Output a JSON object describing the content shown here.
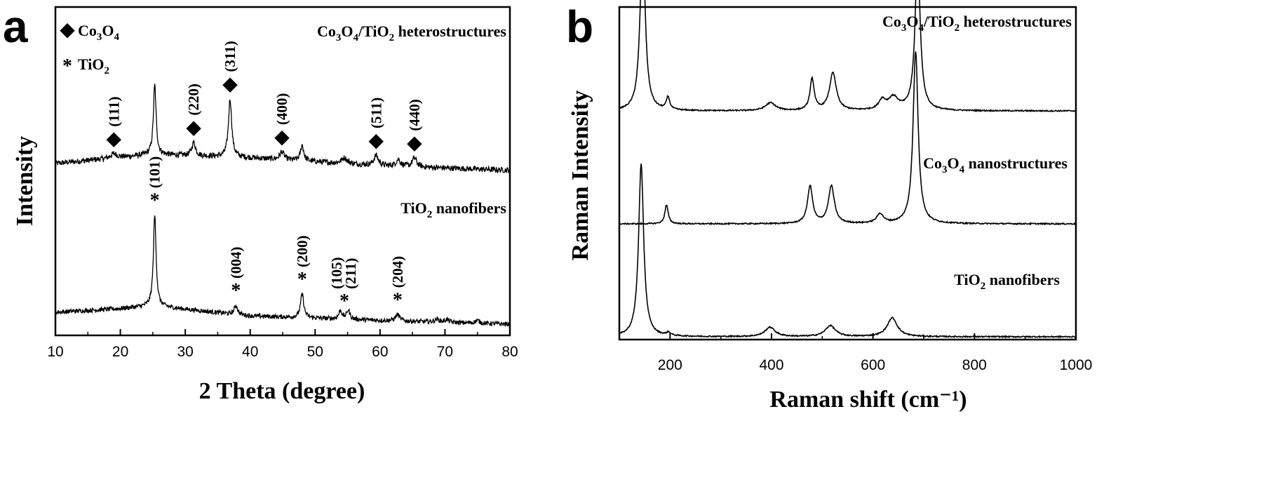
{
  "chart_data": [
    {
      "panel": "a",
      "type": "line",
      "xlabel": "2 Theta (degree)",
      "ylabel": "Intensity",
      "xlim": [
        10,
        80
      ],
      "xticks": [
        "10",
        "20",
        "30",
        "40",
        "50",
        "60",
        "70",
        "80"
      ],
      "legend": [
        {
          "symbol": "◆",
          "label": "Co",
          "sub1": "3",
          "mid": "O",
          "sub2": "4"
        },
        {
          "symbol": "*",
          "label": "TiO",
          "sub1": "2"
        }
      ],
      "series": [
        {
          "name": "Co3O4/TiO2 heterostructures",
          "label_parts": [
            "Co",
            "3",
            "O",
            "4",
            "/TiO",
            "2",
            " heterostructures"
          ],
          "baseline": [
            [
              10,
              0.58
            ],
            [
              25,
              0.66
            ],
            [
              40,
              0.63
            ],
            [
              60,
              0.56
            ],
            [
              80,
              0.52
            ]
          ],
          "peaks": [
            [
              19.0,
              0.04,
              0.6
            ],
            [
              25.3,
              0.62,
              0.25
            ],
            [
              31.3,
              0.12,
              0.35
            ],
            [
              36.9,
              0.52,
              0.3
            ],
            [
              44.9,
              0.07,
              0.4
            ],
            [
              48.0,
              0.14,
              0.3
            ],
            [
              54.5,
              0.05,
              0.5
            ],
            [
              59.4,
              0.09,
              0.4
            ],
            [
              62.8,
              0.06,
              0.4
            ],
            [
              65.3,
              0.08,
              0.4
            ]
          ],
          "annotations": [
            {
              "x": 19.0,
              "label": "(111)",
              "marker": "◆"
            },
            {
              "x": 31.3,
              "label": "(220)",
              "marker": "◆"
            },
            {
              "x": 36.9,
              "label": "(311)",
              "marker": "◆"
            },
            {
              "x": 44.9,
              "label": "(400)",
              "marker": "◆"
            },
            {
              "x": 59.4,
              "label": "(511)",
              "marker": "◆"
            },
            {
              "x": 65.3,
              "label": "(440)",
              "marker": "◆"
            }
          ]
        },
        {
          "name": "TiO2 nanofibers",
          "label_parts": [
            "TiO",
            "2",
            " nanofibers"
          ],
          "baseline": [
            [
              10,
              0.13
            ],
            [
              20,
              0.17
            ],
            [
              25,
              0.2
            ],
            [
              40,
              0.09
            ],
            [
              60,
              0.04
            ],
            [
              80,
              0.0
            ]
          ],
          "peaks": [
            [
              25.3,
              1.0,
              0.25
            ],
            [
              37.8,
              0.1,
              0.3
            ],
            [
              48.0,
              0.26,
              0.3
            ],
            [
              53.9,
              0.09,
              0.3
            ],
            [
              55.1,
              0.1,
              0.3
            ],
            [
              62.7,
              0.07,
              0.4
            ],
            [
              68.8,
              0.03,
              0.4
            ],
            [
              70.3,
              0.03,
              0.4
            ],
            [
              75.0,
              0.03,
              0.4
            ]
          ],
          "annotations": [
            {
              "x": 25.3,
              "label": "(101)",
              "marker": "*"
            },
            {
              "x": 37.8,
              "label": "(004)",
              "marker": "*"
            },
            {
              "x": 48.0,
              "label": "(200)",
              "marker": "*"
            },
            {
              "x": 54.5,
              "label": "(105)(211)",
              "marker": "*"
            },
            {
              "x": 62.7,
              "label": "(204)",
              "marker": "*"
            }
          ]
        }
      ]
    },
    {
      "panel": "b",
      "type": "line",
      "xlabel": "Raman shift (cm⁻¹)",
      "ylabel": "Raman Intensity",
      "xlim": [
        100,
        1000
      ],
      "xticks": [
        "200",
        "400",
        "600",
        "800",
        "1000"
      ],
      "series": [
        {
          "name": "Co3O4/TiO2 heterostructures",
          "label_parts": [
            "Co",
            "3",
            "O",
            "4",
            "/TiO",
            "2",
            " heterostructures"
          ],
          "offset": 0.72,
          "peaks": [
            [
              146,
              0.55,
              6
            ],
            [
              196,
              0.04,
              4
            ],
            [
              398,
              0.025,
              12
            ],
            [
              480,
              0.1,
              5
            ],
            [
              521,
              0.12,
              8
            ],
            [
              618,
              0.03,
              8
            ],
            [
              640,
              0.04,
              12
            ],
            [
              688,
              0.49,
              6
            ]
          ]
        },
        {
          "name": "Co3O4 nanostructures",
          "label_parts": [
            "Co",
            "3",
            "O",
            "4",
            " nanostructures"
          ],
          "offset": 0.36,
          "peaks": [
            [
              193,
              0.06,
              4
            ],
            [
              476,
              0.12,
              6
            ],
            [
              518,
              0.12,
              7
            ],
            [
              614,
              0.03,
              8
            ],
            [
              684,
              0.55,
              6
            ]
          ]
        },
        {
          "name": "TiO2 nanofibers",
          "label_parts": [
            "TiO",
            "2",
            " nanofibers"
          ],
          "offset": 0.0,
          "peaks": [
            [
              143,
              0.55,
              6
            ],
            [
              197,
              0.01,
              5
            ],
            [
              397,
              0.03,
              12
            ],
            [
              516,
              0.035,
              12
            ],
            [
              638,
              0.06,
              12
            ]
          ]
        }
      ]
    }
  ]
}
